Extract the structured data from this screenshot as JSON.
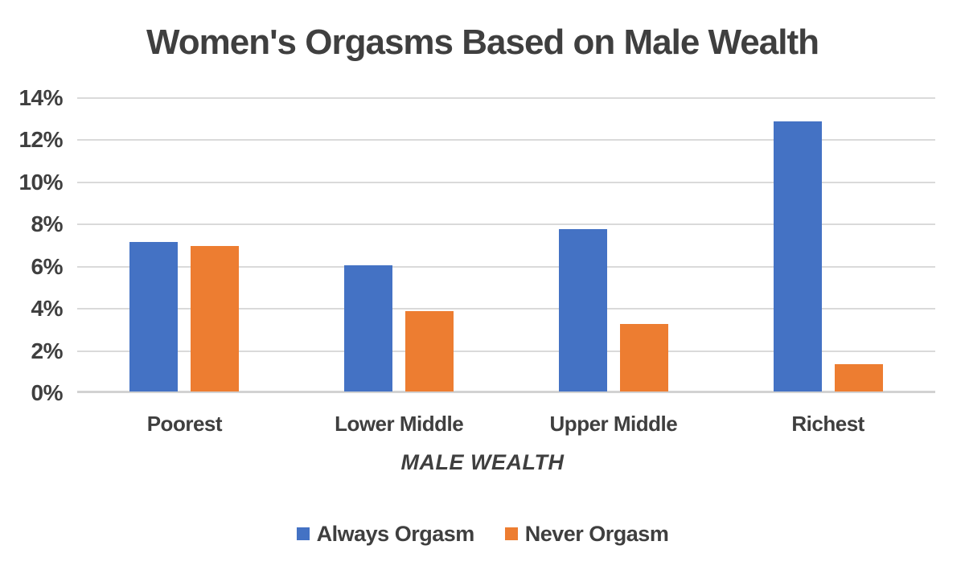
{
  "chart_data": {
    "type": "bar",
    "title": "Women's Orgasms Based on Male Wealth",
    "xlabel": "MALE WEALTH",
    "ylabel": "",
    "categories": [
      "Poorest",
      "Lower Middle",
      "Upper Middle",
      "Richest"
    ],
    "series": [
      {
        "name": "Always Orgasm",
        "color": "#4472C4",
        "values": [
          7.1,
          6.0,
          7.7,
          12.8
        ]
      },
      {
        "name": "Never Orgasm",
        "color": "#ED7D31",
        "values": [
          6.9,
          3.8,
          3.2,
          1.3
        ]
      }
    ],
    "y_ticks": [
      "0%",
      "2%",
      "4%",
      "6%",
      "8%",
      "10%",
      "12%",
      "14%"
    ],
    "ylim": [
      0,
      14
    ],
    "y_tick_step": 2,
    "grid": "horizontal",
    "legend_position": "bottom",
    "text_color": "#3F3F3F",
    "gridline_color": "#DADADA"
  }
}
